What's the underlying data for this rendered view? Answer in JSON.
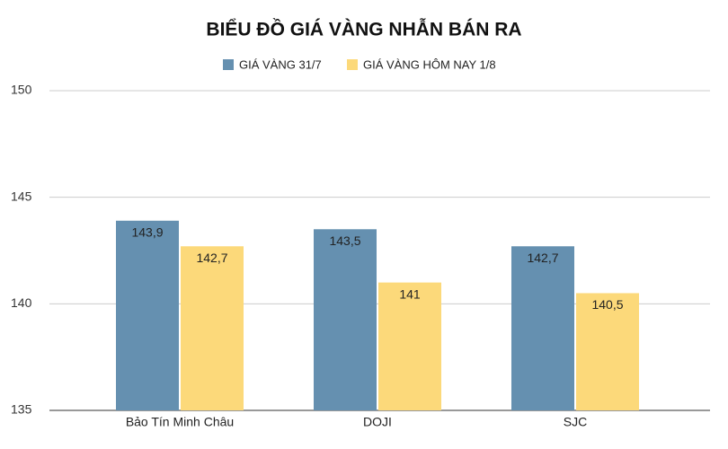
{
  "chart_data": {
    "type": "bar",
    "title": "BIỂU ĐỒ GIÁ VÀNG NHẪN BÁN RA",
    "categories": [
      "Bảo Tín Minh Châu",
      "DOJI",
      "SJC"
    ],
    "series": [
      {
        "name": "GIÁ VÀNG 31/7",
        "color": "#6590b0",
        "values": [
          143.9,
          143.5,
          142.7
        ],
        "value_labels": [
          "143,9",
          "143,5",
          "142,7"
        ]
      },
      {
        "name": "GIÁ VÀNG HÔM NAY 1/8",
        "color": "#fcd97a",
        "values": [
          142.7,
          141,
          140.5
        ],
        "value_labels": [
          "142,7",
          "141",
          "140,5"
        ]
      }
    ],
    "ylim": [
      135,
      150
    ],
    "yticks": [
      135,
      140,
      145,
      150
    ],
    "grid": true
  }
}
